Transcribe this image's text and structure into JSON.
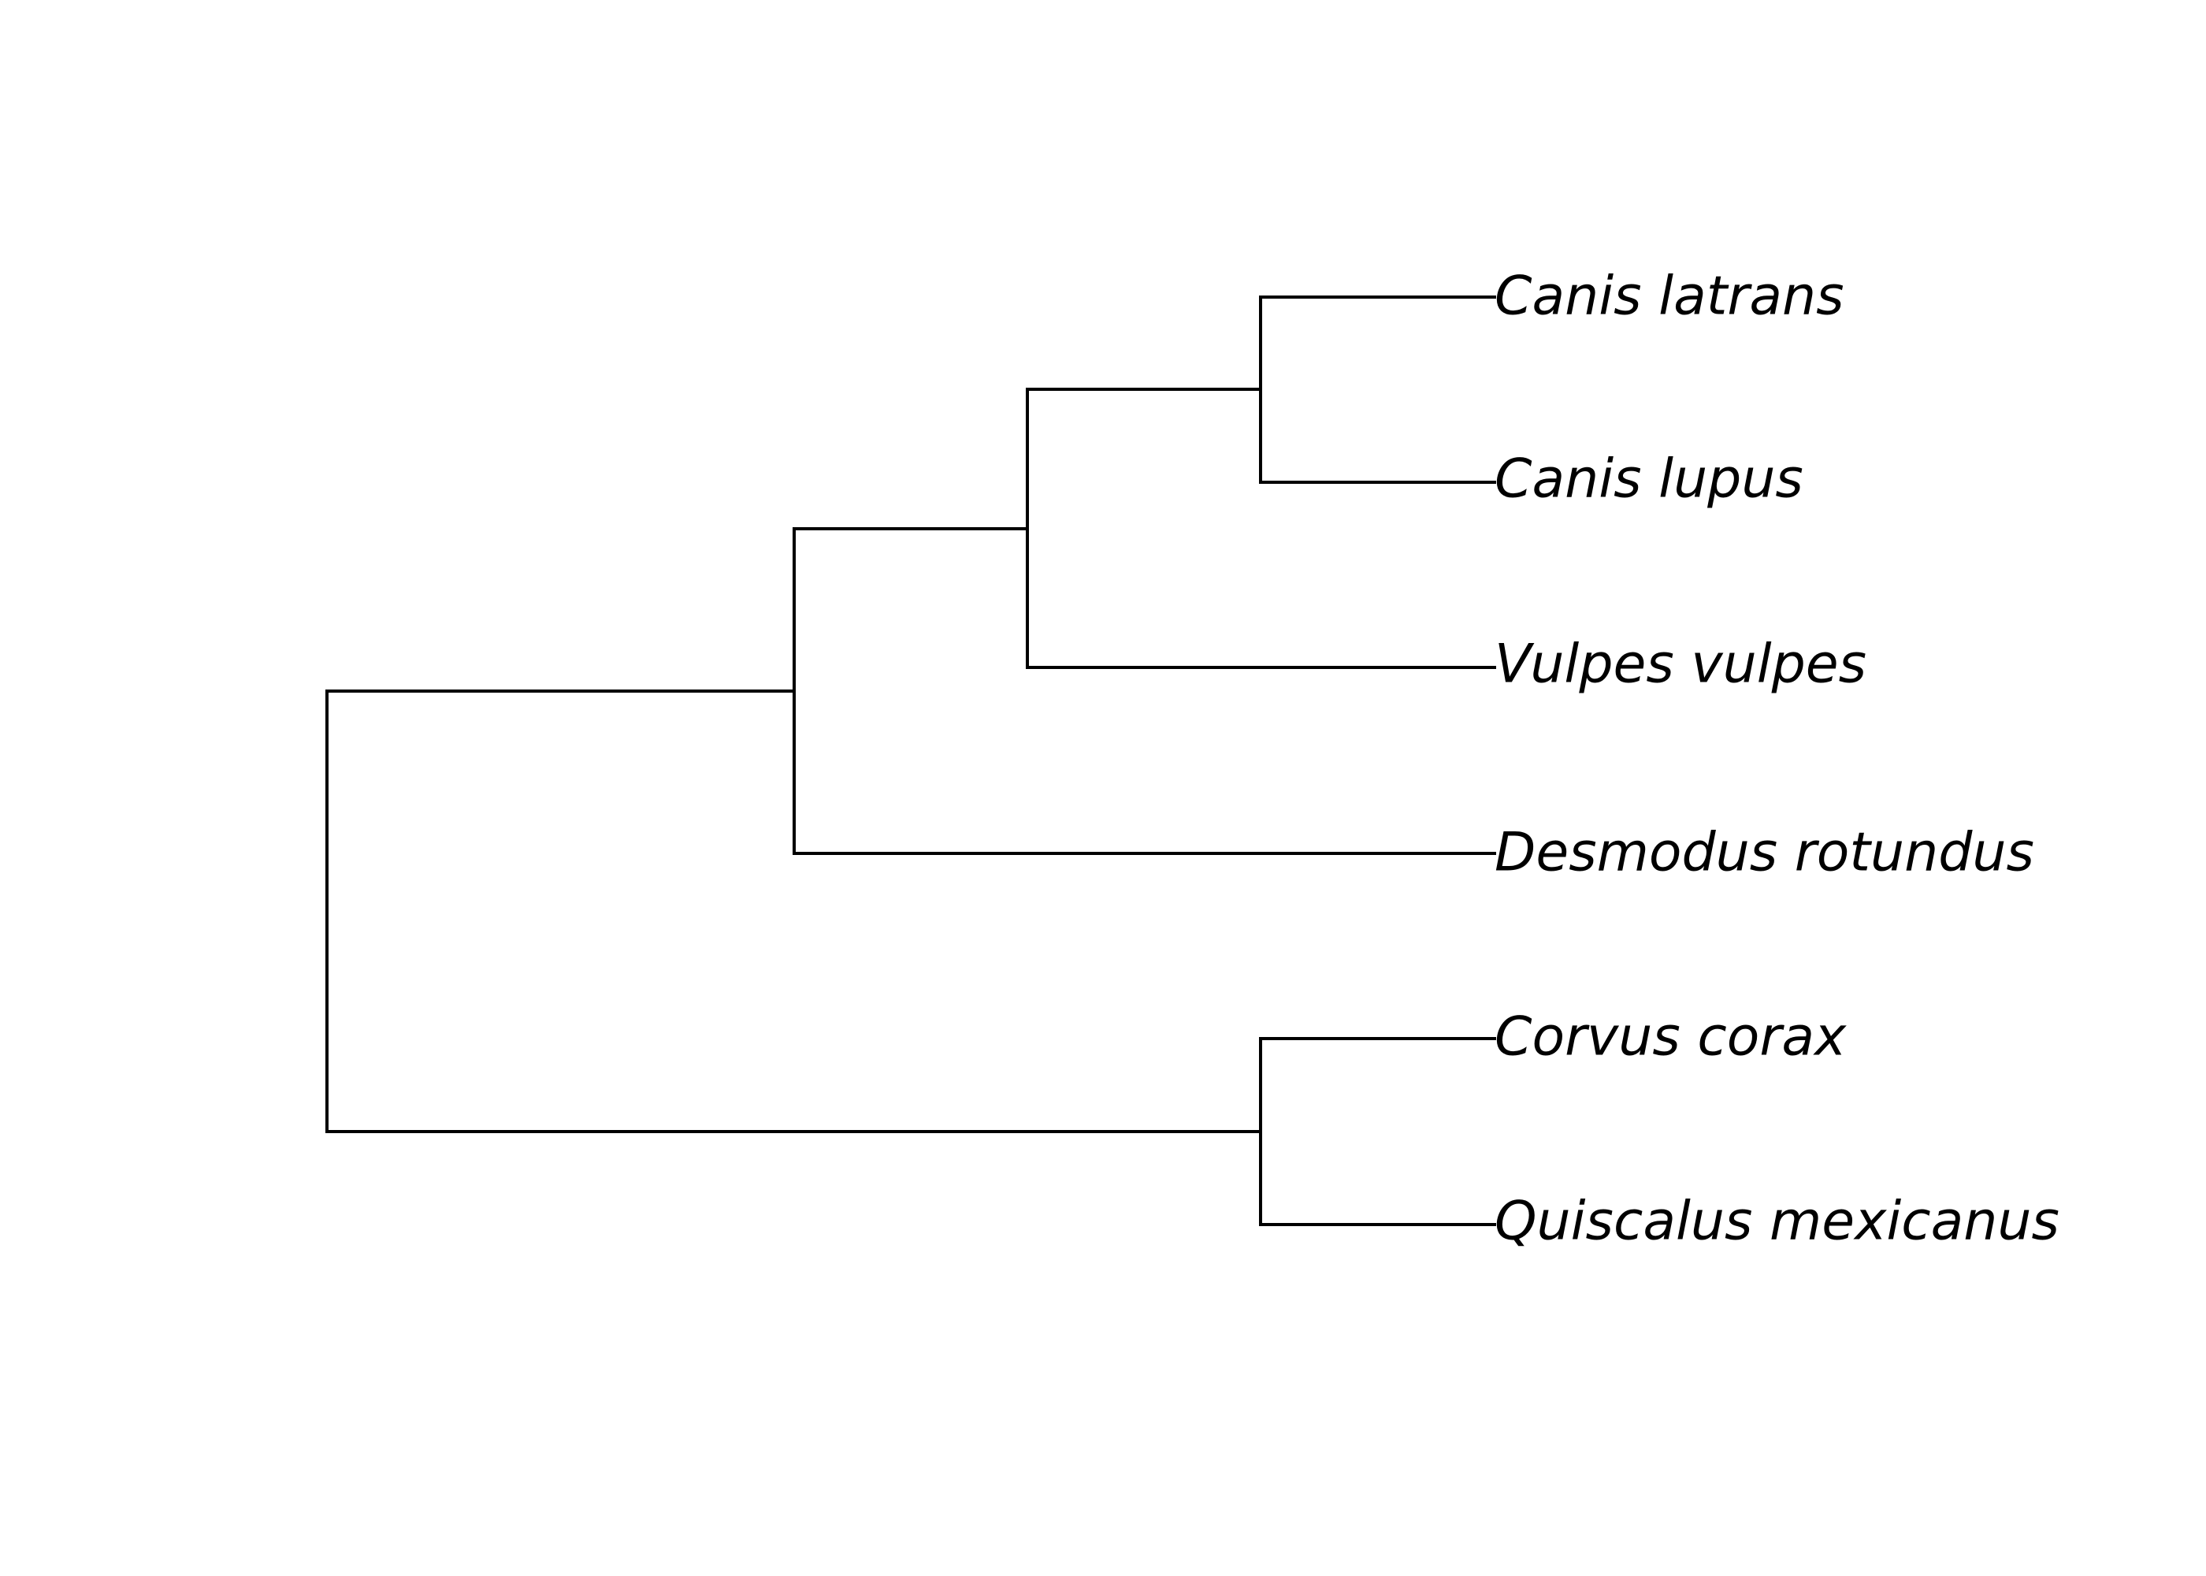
{
  "diagram": {
    "type": "phylogenetic-tree",
    "line_color": "#000000",
    "background": "#ffffff",
    "tips": [
      "Canis latrans",
      "Canis lupus",
      "Vulpes vulpes",
      "Desmodus rotundus",
      "Corvus corax",
      "Quiscalus mexicanus"
    ],
    "topology": "((((Canis latrans,Canis lupus),Vulpes vulpes),Desmodus rotundus),(Corvus corax,Quiscalus mexicanus));"
  }
}
